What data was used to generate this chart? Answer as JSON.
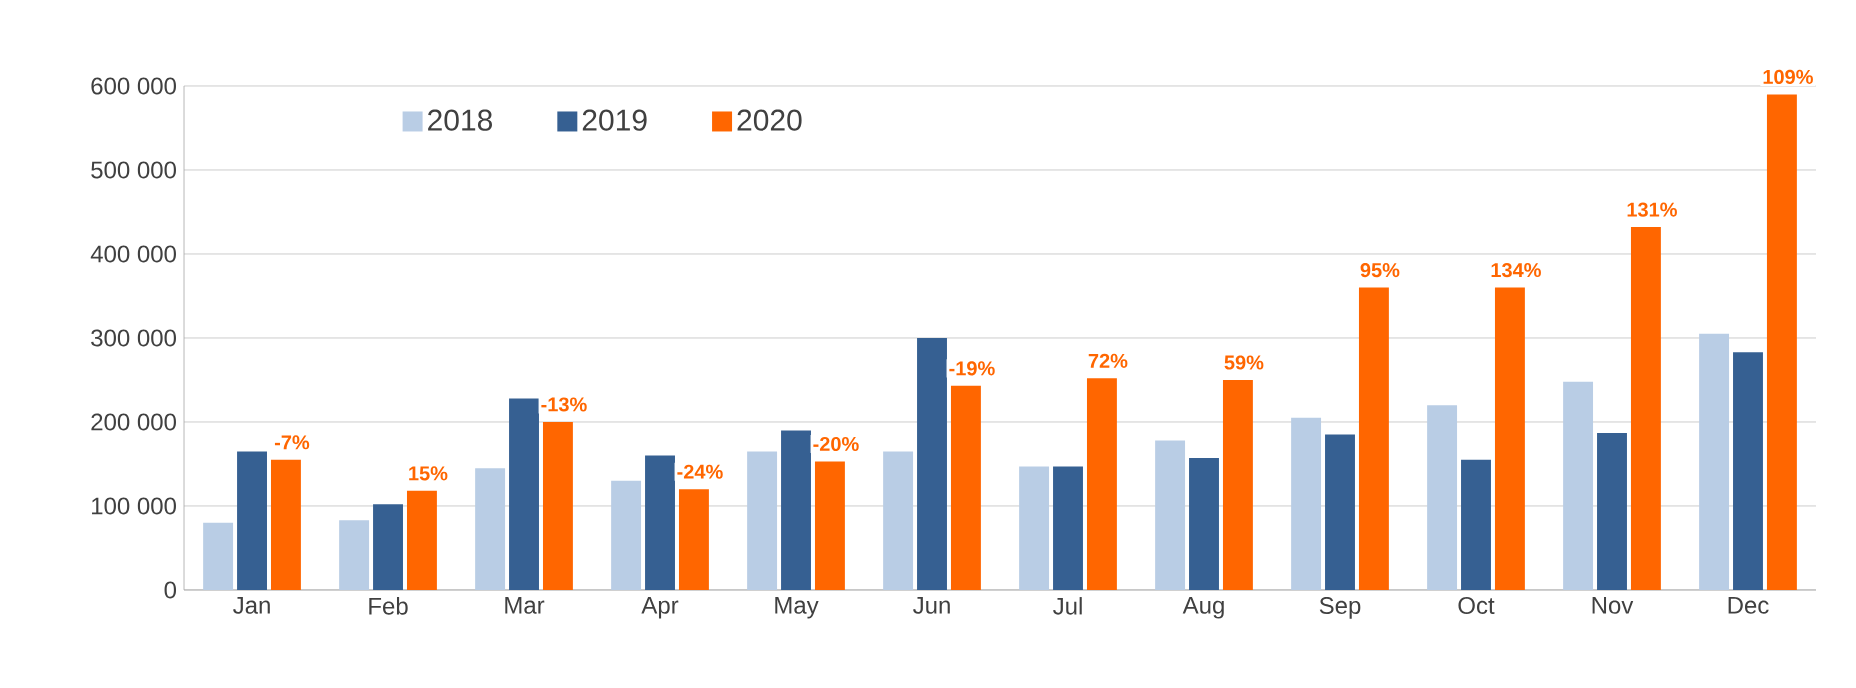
{
  "chart_data": {
    "type": "bar",
    "categories": [
      "Jan",
      "Feb",
      "Mar",
      "Apr",
      "May",
      "Jun",
      "Jul",
      "Aug",
      "Sep",
      "Oct",
      "Nov",
      "Dec"
    ],
    "series": [
      {
        "name": "2018",
        "color": "#b9cde5",
        "values": [
          80000,
          83000,
          145000,
          130000,
          165000,
          165000,
          147000,
          178000,
          205000,
          220000,
          248000,
          305000
        ]
      },
      {
        "name": "2019",
        "color": "#366092",
        "values": [
          165000,
          102000,
          228000,
          160000,
          190000,
          300000,
          147000,
          157000,
          185000,
          155000,
          187000,
          283000
        ]
      },
      {
        "name": "2020",
        "color": "#ff6600",
        "values": [
          155000,
          118000,
          200000,
          120000,
          153000,
          243000,
          252000,
          250000,
          360000,
          360000,
          432000,
          590000
        ]
      }
    ],
    "annotations": [
      "-7%",
      "15%",
      "-13%",
      "-24%",
      "-20%",
      "-19%",
      "72%",
      "59%",
      "95%",
      "134%",
      "131%",
      "109%"
    ],
    "ylim": [
      0,
      600000
    ],
    "yticks": [
      0,
      {
        "value": 100000,
        "label": "100 000"
      },
      {
        "value": 200000,
        "label": "200 000"
      },
      {
        "value": 300000,
        "label": "300 000"
      },
      {
        "value": 400000,
        "label": "400 000"
      },
      {
        "value": 500000,
        "label": "500 000"
      },
      {
        "value": 600000,
        "label": "600 000"
      }
    ],
    "grid": "y",
    "legend": "top left"
  }
}
